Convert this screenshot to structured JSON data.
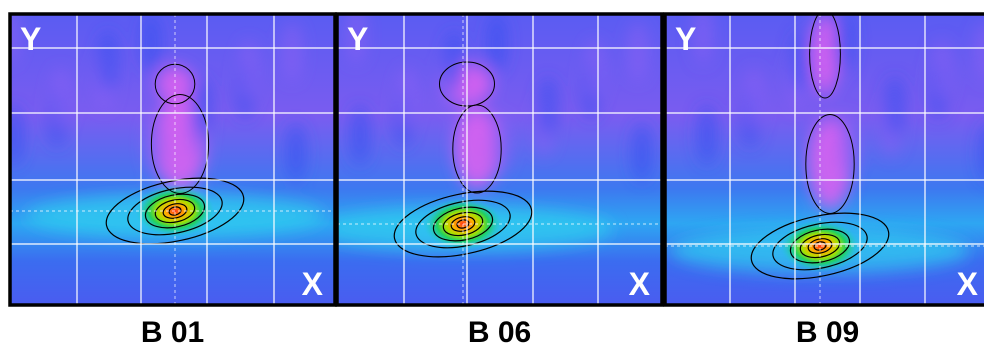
{
  "panels": [
    {
      "y_label": "Y",
      "x_label": "X",
      "caption": "B  01"
    },
    {
      "y_label": "Y",
      "x_label": "X",
      "caption": "B  06"
    },
    {
      "y_label": "Y",
      "x_label": "X",
      "caption": "B  09"
    }
  ]
}
